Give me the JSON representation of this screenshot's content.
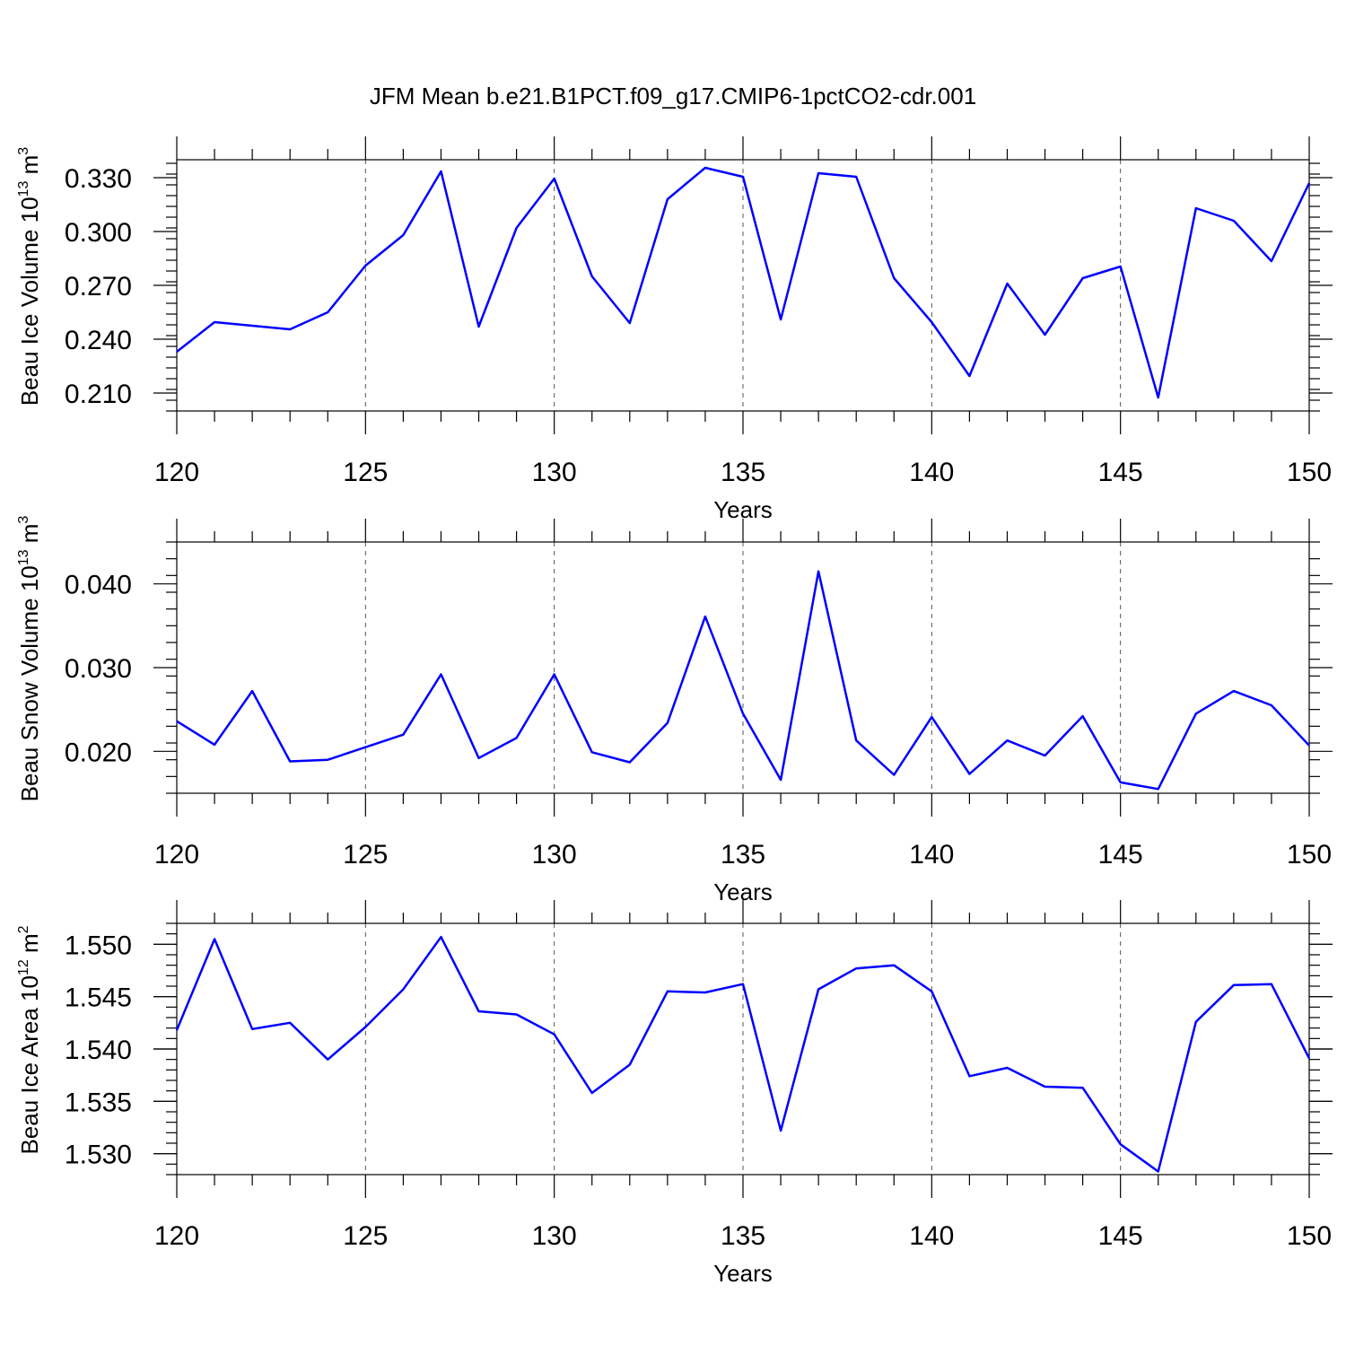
{
  "title": "JFM Mean b.e21.B1PCT.f09_g17.CMIP6-1pctCO2-cdr.001",
  "series_color": "#0000ff",
  "chart_data": [
    {
      "type": "line",
      "title": "JFM Mean b.e21.B1PCT.f09_g17.CMIP6-1pctCO2-cdr.001",
      "xlabel": "Years",
      "ylabel_main": "Beau Ice Volume 10",
      "ylabel_exp": "13",
      "ylabel_unit": " m",
      "ylabel_unit_exp": "3",
      "xlim": [
        120,
        150
      ],
      "ylim": [
        0.2,
        0.34
      ],
      "xticks": [
        120,
        125,
        130,
        135,
        140,
        145,
        150
      ],
      "xtick_labels": [
        "120",
        "125",
        "130",
        "135",
        "140",
        "145",
        "150"
      ],
      "yticks": [
        0.21,
        0.24,
        0.27,
        0.3,
        0.33
      ],
      "ytick_labels": [
        "0.210",
        "0.240",
        "0.270",
        "0.300",
        "0.330"
      ],
      "yminor_step": 0.006,
      "grid": "vertical dashed at major x ticks",
      "x": [
        120,
        121,
        122,
        123,
        124,
        125,
        126,
        127,
        128,
        129,
        130,
        131,
        132,
        133,
        134,
        135,
        136,
        137,
        138,
        139,
        140,
        141,
        142,
        143,
        144,
        145,
        146,
        147,
        148,
        149,
        150
      ],
      "y": [
        0.233,
        0.2495,
        0.2475,
        0.2455,
        0.255,
        0.281,
        0.298,
        0.3335,
        0.247,
        0.302,
        0.3295,
        0.275,
        0.249,
        0.318,
        0.3355,
        0.3305,
        0.251,
        0.3325,
        0.3305,
        0.274,
        0.2495,
        0.2195,
        0.271,
        0.2425,
        0.274,
        0.2805,
        0.2075,
        0.313,
        0.306,
        0.2835,
        0.327
      ]
    },
    {
      "type": "line",
      "xlabel": "Years",
      "ylabel_main": "Beau Snow Volume 10",
      "ylabel_exp": "13",
      "ylabel_unit": " m",
      "ylabel_unit_exp": "3",
      "xlim": [
        120,
        150
      ],
      "ylim": [
        0.015,
        0.045
      ],
      "xticks": [
        120,
        125,
        130,
        135,
        140,
        145,
        150
      ],
      "xtick_labels": [
        "120",
        "125",
        "130",
        "135",
        "140",
        "145",
        "150"
      ],
      "yticks": [
        0.02,
        0.03,
        0.04
      ],
      "ytick_labels": [
        "0.020",
        "0.030",
        "0.040"
      ],
      "yminor_step": 0.002,
      "grid": "vertical dashed at major x ticks",
      "x": [
        120,
        121,
        122,
        123,
        124,
        125,
        126,
        127,
        128,
        129,
        130,
        131,
        132,
        133,
        134,
        135,
        136,
        137,
        138,
        139,
        140,
        141,
        142,
        143,
        144,
        145,
        146,
        147,
        148,
        149,
        150
      ],
      "y": [
        0.0236,
        0.0208,
        0.0272,
        0.0188,
        0.019,
        0.0205,
        0.022,
        0.0292,
        0.0192,
        0.0216,
        0.0292,
        0.0199,
        0.0187,
        0.0234,
        0.0361,
        0.0245,
        0.0166,
        0.0415,
        0.0213,
        0.0172,
        0.0241,
        0.0173,
        0.0213,
        0.0195,
        0.0242,
        0.0163,
        0.0155,
        0.0245,
        0.0272,
        0.0255,
        0.0207
      ]
    },
    {
      "type": "line",
      "xlabel": "Years",
      "ylabel_main": "Beau Ice Area 10",
      "ylabel_exp": "12",
      "ylabel_unit": " m",
      "ylabel_unit_exp": "2",
      "xlim": [
        120,
        150
      ],
      "ylim": [
        1.528,
        1.552
      ],
      "xticks": [
        120,
        125,
        130,
        135,
        140,
        145,
        150
      ],
      "xtick_labels": [
        "120",
        "125",
        "130",
        "135",
        "140",
        "145",
        "150"
      ],
      "yticks": [
        1.53,
        1.535,
        1.54,
        1.545,
        1.55
      ],
      "ytick_labels": [
        "1.530",
        "1.535",
        "1.540",
        "1.545",
        "1.550"
      ],
      "yminor_step": 0.001,
      "grid": "vertical dashed at major x ticks",
      "x": [
        120,
        121,
        122,
        123,
        124,
        125,
        126,
        127,
        128,
        129,
        130,
        131,
        132,
        133,
        134,
        135,
        136,
        137,
        138,
        139,
        140,
        141,
        142,
        143,
        144,
        145,
        146,
        147,
        148,
        149,
        150
      ],
      "y": [
        1.5418,
        1.5505,
        1.5419,
        1.5425,
        1.539,
        1.5421,
        1.5457,
        1.5507,
        1.5436,
        1.5433,
        1.5414,
        1.5358,
        1.5385,
        1.5455,
        1.5454,
        1.5462,
        1.5322,
        1.5457,
        1.5477,
        1.548,
        1.5455,
        1.5374,
        1.5382,
        1.5364,
        1.5363,
        1.5309,
        1.5283,
        1.5426,
        1.5461,
        1.5462,
        1.5391
      ]
    }
  ]
}
